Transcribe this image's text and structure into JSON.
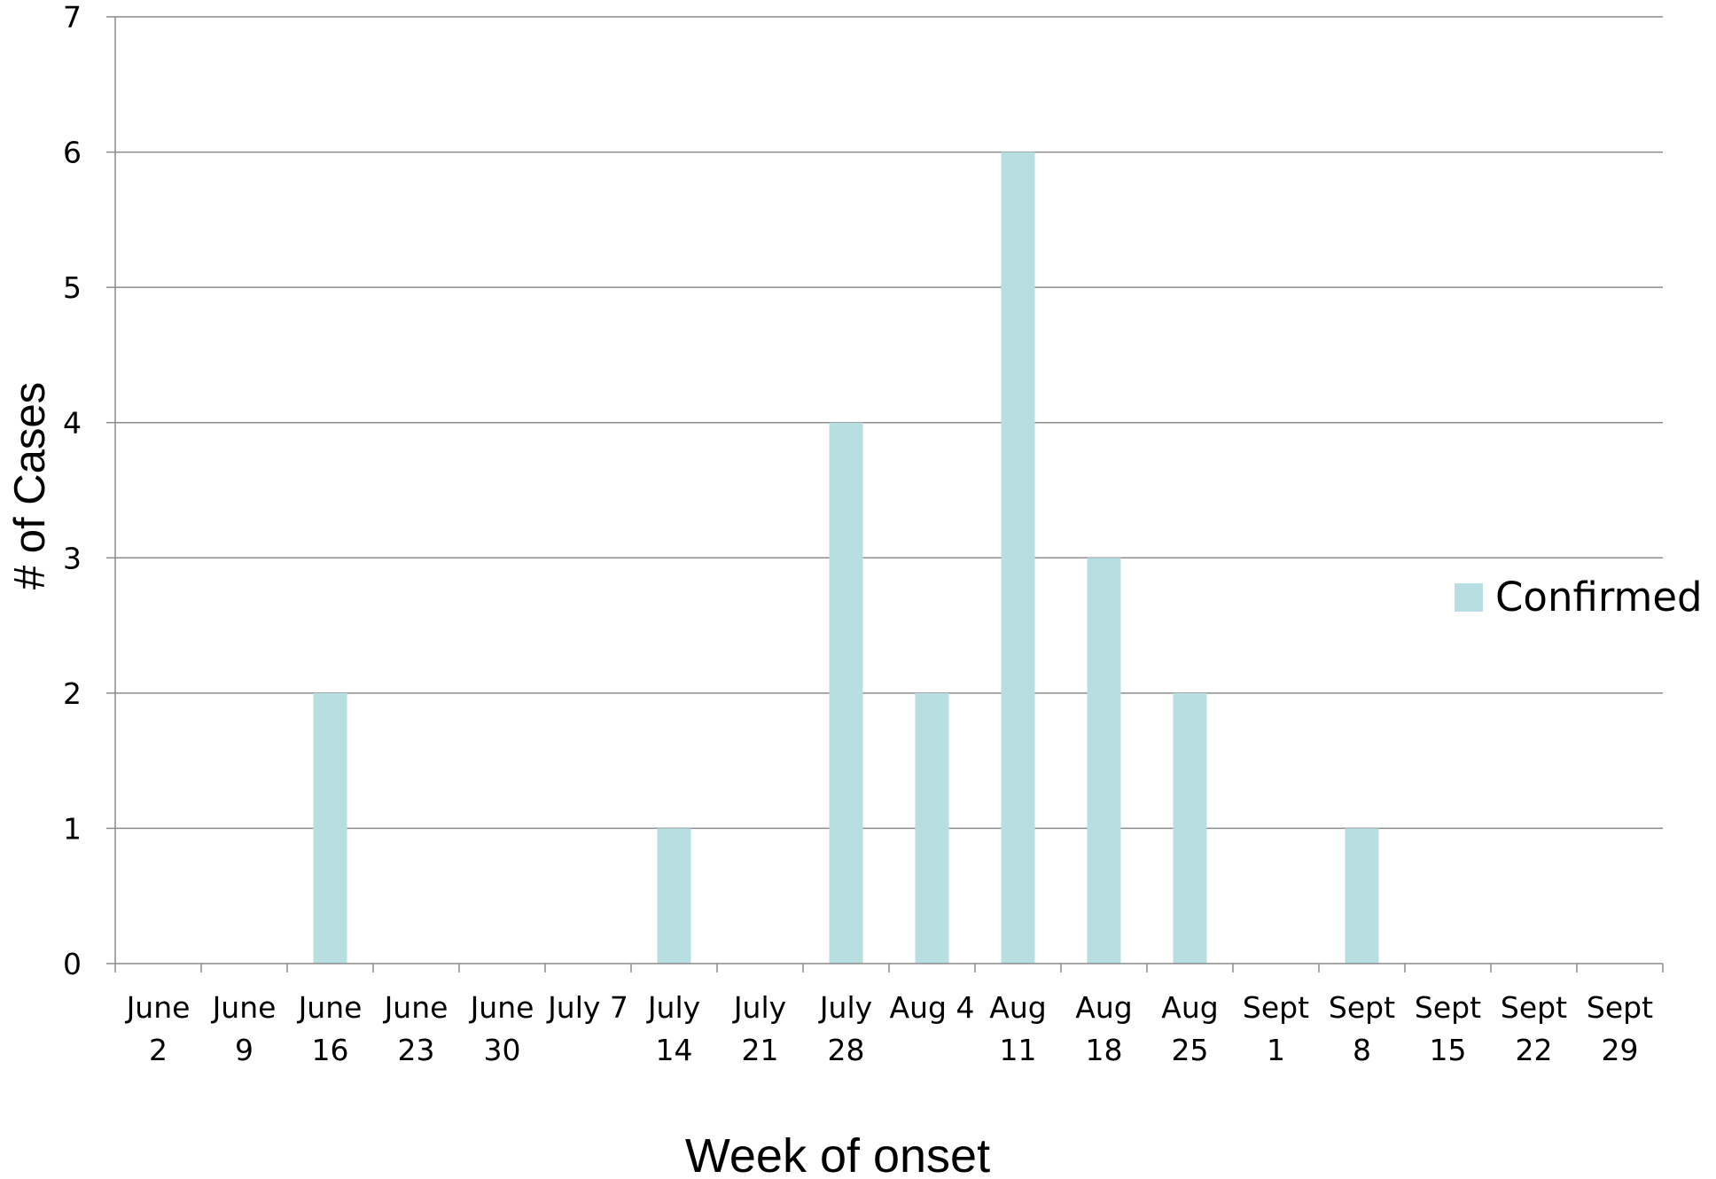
{
  "chart_data": {
    "type": "bar",
    "title": "",
    "xlabel": "Week of onset",
    "ylabel": "# of Cases",
    "ylim": [
      0,
      7
    ],
    "yticks": [
      0,
      1,
      2,
      3,
      4,
      5,
      6,
      7
    ],
    "grid": true,
    "legend_position": "right",
    "categories": [
      [
        "June",
        "2"
      ],
      [
        "June",
        "9"
      ],
      [
        "June",
        "16"
      ],
      [
        "June",
        "23"
      ],
      [
        "June",
        "30"
      ],
      [
        "July 7"
      ],
      [
        "July",
        "14"
      ],
      [
        "July",
        "21"
      ],
      [
        "July",
        "28"
      ],
      [
        "Aug 4"
      ],
      [
        "Aug",
        "11"
      ],
      [
        "Aug",
        "18"
      ],
      [
        "Aug",
        "25"
      ],
      [
        "Sept",
        "1"
      ],
      [
        "Sept",
        "8"
      ],
      [
        "Sept",
        "15"
      ],
      [
        "Sept",
        "22"
      ],
      [
        "Sept",
        "29"
      ]
    ],
    "series": [
      {
        "name": "Confirmed",
        "color": "#b7dfe2",
        "values": [
          0,
          0,
          2,
          0,
          0,
          0,
          1,
          0,
          4,
          2,
          6,
          3,
          2,
          0,
          1,
          0,
          0,
          0
        ]
      }
    ]
  }
}
